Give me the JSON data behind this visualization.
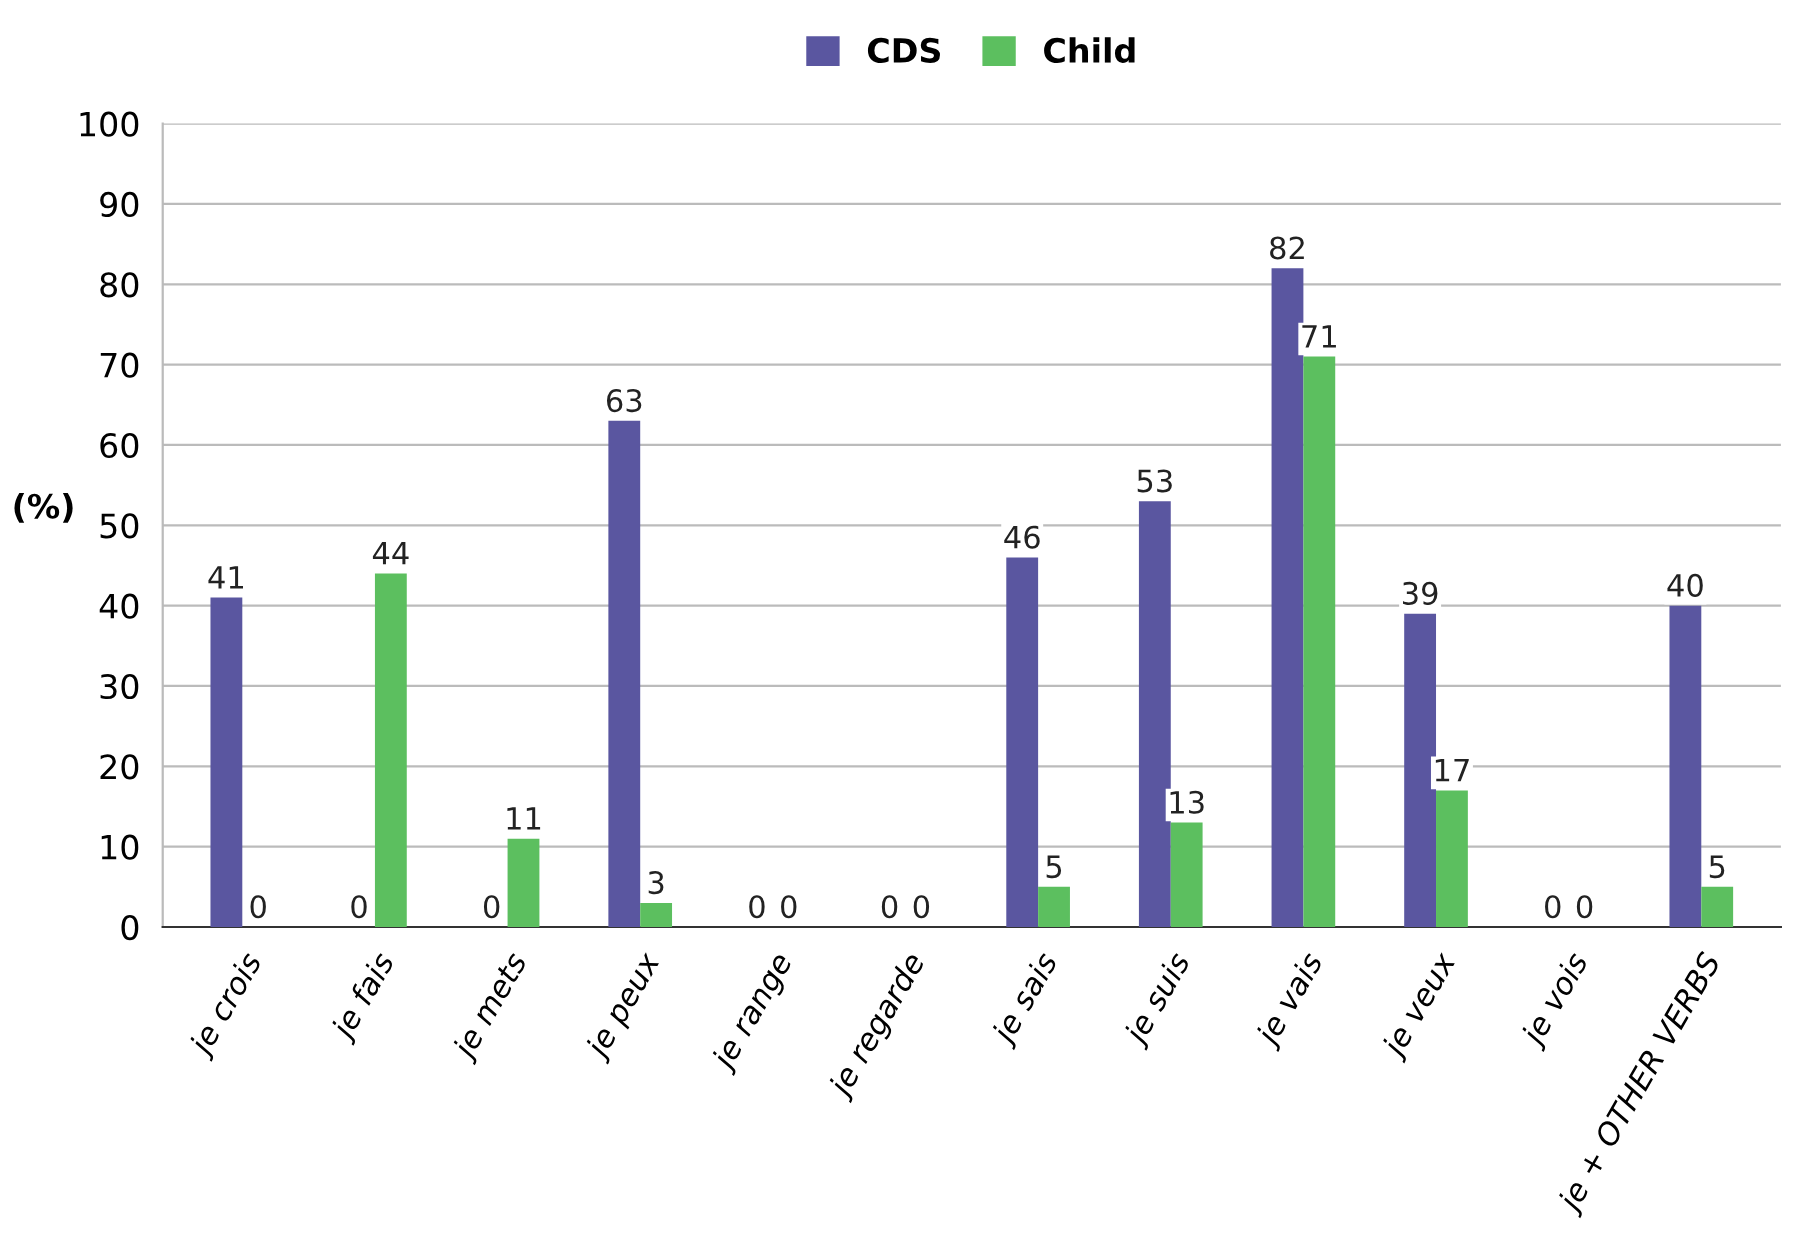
{
  "chart_data": {
    "type": "bar",
    "ylabel": "(%)",
    "categories": [
      "je crois",
      "je fais",
      "je mets",
      "je peux",
      "je range",
      "je regarde",
      "je sais",
      "je suis",
      "je vais",
      "je veux",
      "je vois",
      "je + OTHER VERBS"
    ],
    "series": [
      {
        "name": "CDS",
        "color": "#5a56a0",
        "values": [
          41,
          0,
          0,
          63,
          0,
          0,
          46,
          53,
          82,
          39,
          0,
          40
        ]
      },
      {
        "name": "Child",
        "color": "#5cbf5f",
        "values": [
          0,
          44,
          11,
          3,
          0,
          0,
          5,
          13,
          71,
          17,
          0,
          5
        ]
      }
    ],
    "ylim": [
      0,
      100
    ],
    "yticks": [
      0,
      10,
      20,
      30,
      40,
      50,
      60,
      70,
      80,
      90,
      100
    ],
    "grid": "y",
    "legend": "top",
    "data_labels": true
  }
}
